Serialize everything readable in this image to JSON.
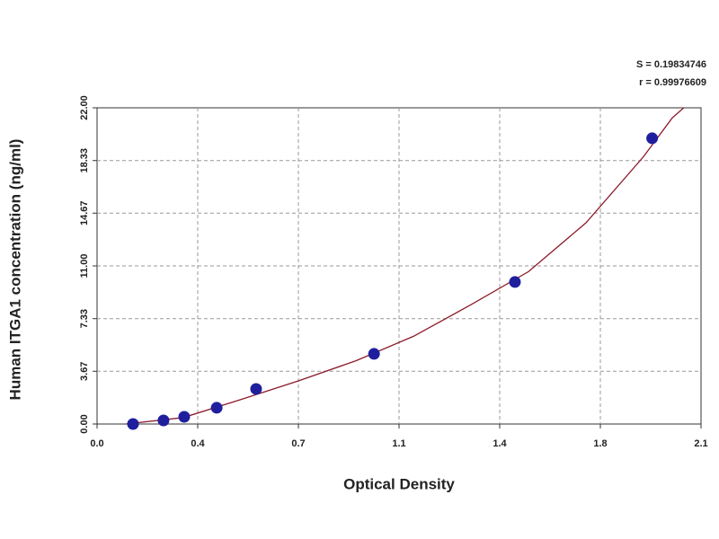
{
  "chart_data": {
    "type": "scatter",
    "xlabel": "Optical Density",
    "ylabel": "Human ITGA1 concentration (ng/ml)",
    "annotations": [
      "S = 0.19834746",
      "r = 0.99976609"
    ],
    "xlim": [
      0,
      2.1
    ],
    "ylim": [
      0,
      22
    ],
    "xticks": [
      {
        "value": 0,
        "label": "0.0"
      },
      {
        "value": 0.35,
        "label": "0.4"
      },
      0.7,
      {
        "value": 1.05,
        "label": "1.1"
      },
      1.4,
      {
        "value": 1.75,
        "label": "1.8"
      },
      2.1
    ],
    "yticks": [
      {
        "value": 0,
        "label": "0.00"
      },
      3.67,
      7.33,
      {
        "value": 11,
        "label": "11.00"
      },
      14.67,
      18.33,
      {
        "value": 22,
        "label": "22.00"
      }
    ],
    "grid": true,
    "points": {
      "color": "#1f1f9e",
      "x": [
        0.125,
        0.231,
        0.303,
        0.416,
        0.553,
        0.963,
        1.453,
        1.93
      ],
      "y": [
        0,
        0.25,
        0.5,
        1.13,
        2.44,
        4.88,
        9.88,
        19.88
      ]
    },
    "fit": {
      "color": "#8b1a2a",
      "x": [
        0.1,
        0.3,
        0.5,
        0.7,
        0.9,
        1.1,
        1.3,
        1.5,
        1.7,
        1.9,
        2.0,
        2.04
      ],
      "y": [
        0,
        0.45,
        1.7,
        3.0,
        4.4,
        6.1,
        8.3,
        10.6,
        14.0,
        18.6,
        21.3,
        22
      ]
    }
  }
}
